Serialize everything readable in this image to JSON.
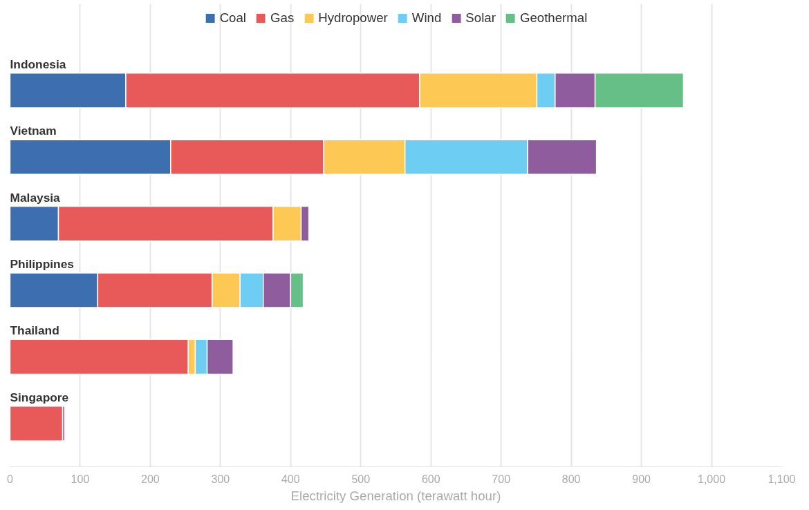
{
  "chart_data": {
    "type": "bar",
    "orientation": "horizontal",
    "stacked": true,
    "xlabel": "Electricity Generation (terawatt hour)",
    "categories": [
      "Indonesia",
      "Vietnam",
      "Malaysia",
      "Philippines",
      "Thailand",
      "Singapore"
    ],
    "series": [
      {
        "name": "Coal",
        "color": "#3d6eb0",
        "values": [
          165,
          229,
          69,
          125,
          0,
          0
        ]
      },
      {
        "name": "Gas",
        "color": "#e85a5a",
        "values": [
          419,
          218,
          306,
          163,
          254,
          75
        ]
      },
      {
        "name": "Hydropower",
        "color": "#fdc854",
        "values": [
          167,
          116,
          40,
          40,
          10,
          0
        ]
      },
      {
        "name": "Wind",
        "color": "#6dcdf2",
        "values": [
          26,
          175,
          0,
          33,
          17,
          0
        ]
      },
      {
        "name": "Solar",
        "color": "#8f5c9e",
        "values": [
          57,
          98,
          11,
          39,
          37,
          3
        ]
      },
      {
        "name": "Geothermal",
        "color": "#66bf87",
        "values": [
          126,
          0,
          0,
          18,
          0,
          0
        ]
      }
    ],
    "xlim": [
      0,
      1100
    ],
    "xticks": [
      0,
      100,
      200,
      300,
      400,
      500,
      600,
      700,
      800,
      900,
      {
        "value": 1000,
        "label": "1,000"
      },
      {
        "value": 1100,
        "label": "1,100"
      }
    ],
    "grid": "x",
    "legend": "top"
  }
}
